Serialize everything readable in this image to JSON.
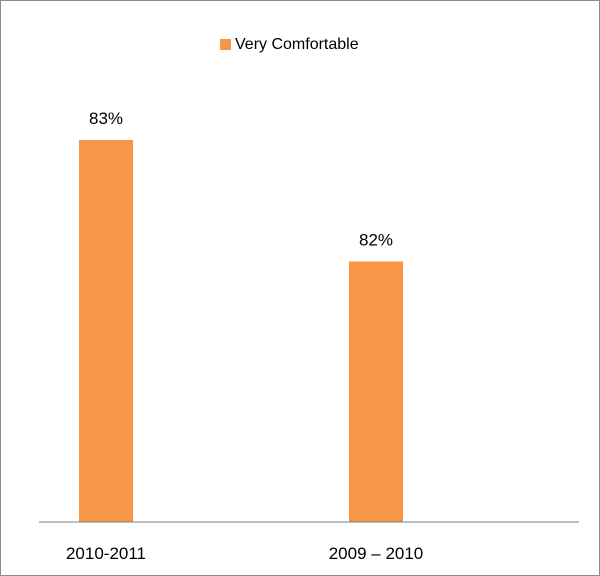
{
  "chart_data": {
    "type": "bar",
    "categories": [
      "2010-2011",
      "2009 – 2010"
    ],
    "series": [
      {
        "name": "Very Comfortable",
        "values": [
          83,
          82
        ],
        "color": "#f79646"
      }
    ],
    "data_labels": [
      "83%",
      "82%"
    ],
    "value_format": "percent",
    "legend_position": "top-center",
    "grid": false,
    "baseline_visible": true,
    "y_axis_visible": false
  }
}
